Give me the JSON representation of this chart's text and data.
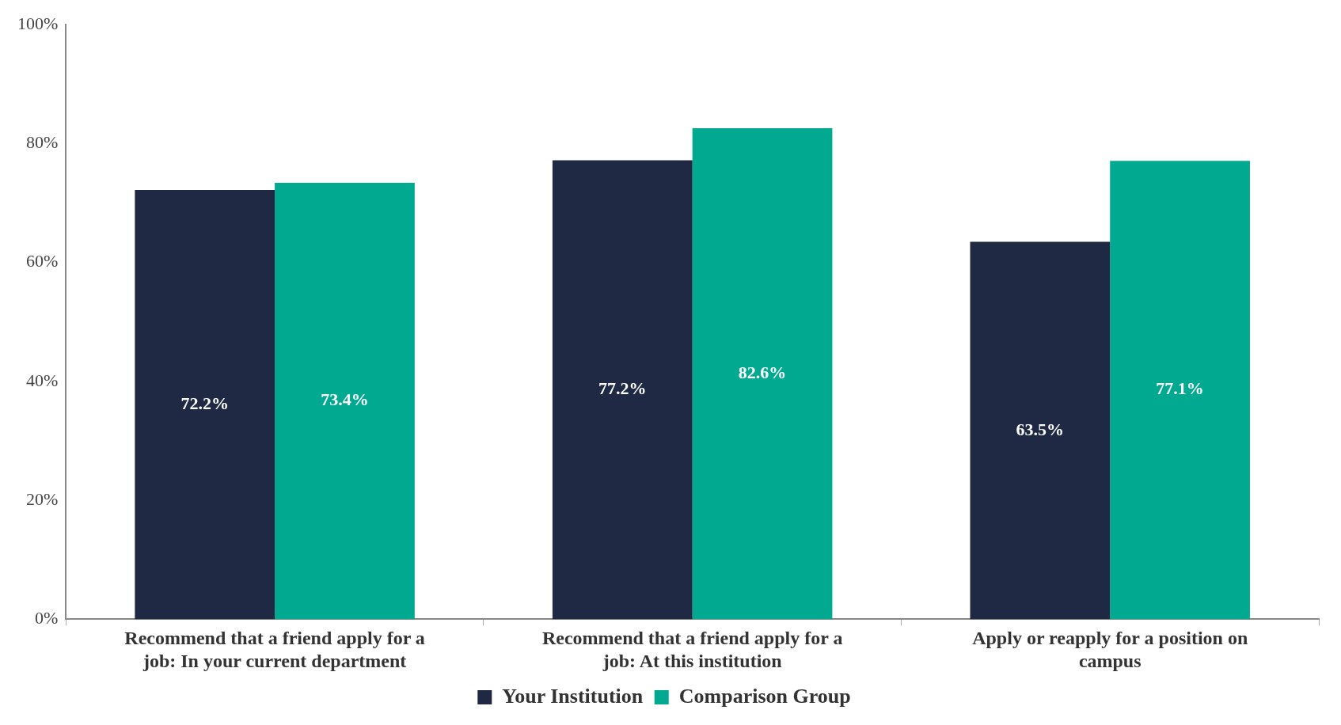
{
  "chart_data": {
    "type": "bar",
    "categories": [
      "Recommend that a friend apply for a job: In your current department",
      "Recommend that a friend apply for a job: At this institution",
      "Apply or reapply for a position on campus"
    ],
    "series": [
      {
        "name": "Your Institution",
        "color": "#1f2944",
        "values": [
          72.2,
          77.2,
          63.5
        ],
        "value_labels": [
          "72.2%",
          "77.2%",
          "63.5%"
        ]
      },
      {
        "name": "Comparison Group",
        "color": "#00a98f",
        "values": [
          73.4,
          82.6,
          77.1
        ],
        "value_labels": [
          "73.4%",
          "82.6%",
          "77.1%"
        ]
      }
    ],
    "ylim": [
      0,
      100
    ],
    "yticks": [
      {
        "value": 0,
        "label": "0%"
      },
      {
        "value": 20,
        "label": "20%"
      },
      {
        "value": 40,
        "label": "40%"
      },
      {
        "value": 60,
        "label": "60%"
      },
      {
        "value": 80,
        "label": "80%"
      },
      {
        "value": 100,
        "label": "100%"
      }
    ],
    "grid": false,
    "legend": "bottom"
  }
}
